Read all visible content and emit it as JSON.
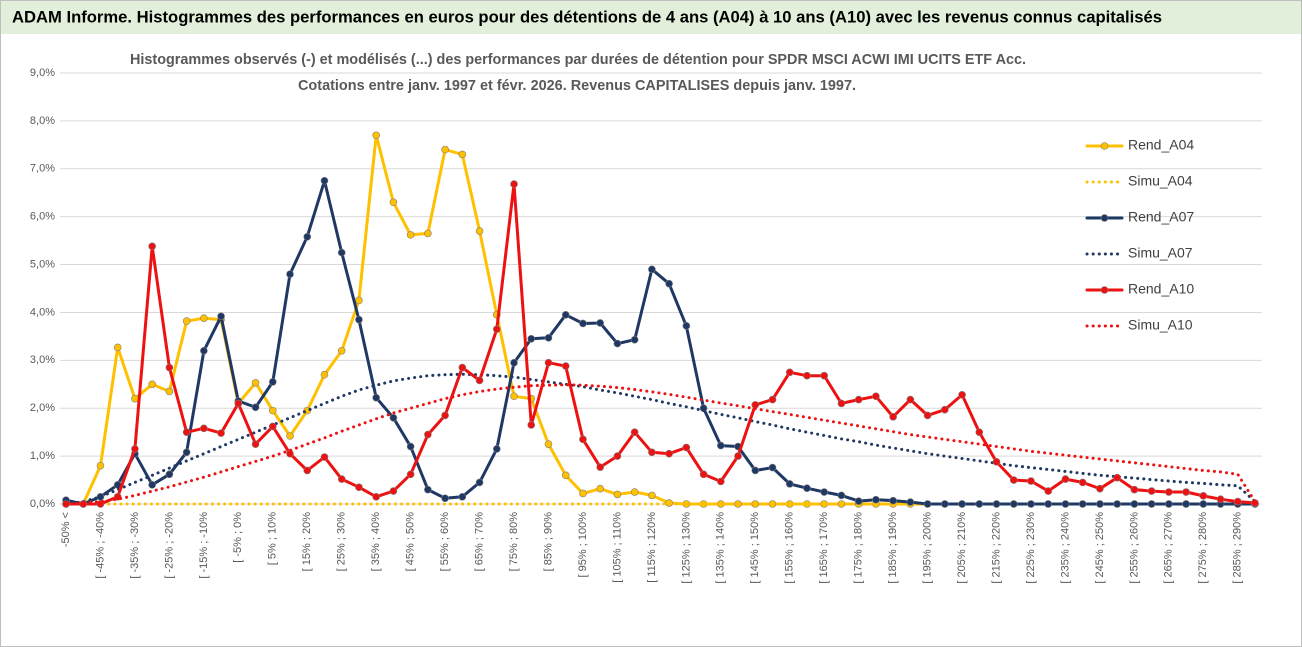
{
  "header": {
    "title": "ADAM Informe. Histogrammes des performances en euros pour des détentions de 4 ans (A04) à 10 ans (A10) avec les revenus connus capitalisés"
  },
  "chart_data": {
    "type": "line",
    "title": "Histogrammes observés (-) et modélisés (...) des performances par durées de détention pour SPDR MSCI ACWI IMI UCITS ETF Acc.",
    "subtitle": "Cotations entre janv. 1997 et févr. 2026. Revenus CAPITALISES depuis janv. 1997.",
    "categories": [
      "-50% <",
      null,
      "[ -45% ; -40%",
      null,
      "[ -35% ; -30%",
      null,
      "[ -25% ; -20%",
      null,
      "[ -15% ; -10%",
      null,
      "[ -5% ; 0%",
      null,
      "[ 5% ; 10%",
      null,
      "[ 15% ; 20%",
      null,
      "[ 25% ; 30%",
      null,
      "[ 35% ; 40%",
      null,
      "[ 45% ; 50%",
      null,
      "[ 55% ; 60%",
      null,
      "[ 65% ; 70%",
      null,
      "[ 75% ; 80%",
      null,
      "[ 85% ; 90%",
      null,
      "[ 95% ; 100%",
      null,
      "[ 105% ; 110%",
      null,
      "[ 115% ; 120%",
      null,
      "[ 125% ; 130%",
      null,
      "[ 135% ; 140%",
      null,
      "[ 145% ; 150%",
      null,
      "[ 155% ; 160%",
      null,
      "[ 165% ; 170%",
      null,
      "[ 175% ; 180%",
      null,
      "[ 185% ; 190%",
      null,
      "[ 195% ; 200%",
      null,
      "[ 205% ; 210%",
      null,
      "[ 215% ; 220%",
      null,
      "[ 225% ; 230%",
      null,
      "[ 235% ; 240%",
      null,
      "[ 245% ; 250%",
      null,
      "[ 255% ; 260%",
      null,
      "[ 265% ; 270%",
      null,
      "[ 275% ; 280%",
      null,
      "[ 285% ; 290%",
      null
    ],
    "series": [
      {
        "name": "Rend_A04",
        "color": "#ffc000",
        "style": "solid",
        "values": [
          0,
          0,
          0.8,
          3.27,
          2.2,
          2.5,
          2.35,
          3.82,
          3.88,
          3.85,
          2.1,
          2.53,
          1.95,
          1.42,
          1.95,
          2.7,
          3.2,
          4.25,
          7.7,
          6.3,
          5.62,
          5.65,
          7.4,
          7.3,
          5.7,
          3.95,
          2.25,
          2.2,
          1.25,
          0.6,
          0.22,
          0.32,
          0.2,
          0.25,
          0.18,
          0.02,
          0,
          0,
          0,
          0,
          0,
          0,
          0,
          0,
          0,
          0,
          0,
          0,
          0,
          0,
          0,
          0,
          0,
          0,
          0,
          0,
          0,
          0,
          0,
          0,
          0,
          0,
          0,
          0,
          0,
          0,
          0,
          0,
          0,
          0
        ]
      },
      {
        "name": "Simu_A04",
        "color": "#ffc000",
        "style": "dotted",
        "values": [
          0,
          0,
          0,
          0,
          0,
          0,
          0,
          0,
          0,
          0,
          0,
          0,
          0,
          0,
          0,
          0,
          0,
          0,
          0,
          0,
          0,
          0,
          0,
          0,
          0,
          0,
          0,
          0,
          0,
          0,
          0,
          0,
          0,
          0,
          0,
          0,
          0,
          0,
          0,
          0,
          0,
          0,
          0,
          0,
          0,
          0,
          0,
          0,
          0,
          0,
          0,
          0,
          0,
          0,
          0,
          0,
          0,
          0,
          0,
          0,
          0,
          0,
          0,
          0,
          0,
          0,
          0,
          0,
          0,
          0
        ]
      },
      {
        "name": "Rend_A07",
        "color": "#1f3864",
        "style": "solid",
        "values": [
          0.08,
          0,
          0.15,
          0.4,
          1.05,
          0.4,
          0.62,
          1.08,
          3.2,
          3.92,
          2.15,
          2.02,
          2.55,
          4.8,
          5.58,
          6.75,
          5.25,
          3.85,
          2.22,
          1.8,
          1.2,
          0.3,
          0.12,
          0.15,
          0.45,
          1.15,
          2.95,
          3.45,
          3.47,
          3.95,
          3.77,
          3.78,
          3.35,
          3.43,
          4.9,
          4.6,
          3.72,
          2.0,
          1.22,
          1.2,
          0.7,
          0.76,
          0.42,
          0.33,
          0.25,
          0.18,
          0.06,
          0.09,
          0.07,
          0.04,
          0,
          0,
          0,
          0,
          0,
          0,
          0,
          0,
          0,
          0,
          0,
          0,
          0,
          0,
          0,
          0,
          0,
          0,
          0,
          0
        ]
      },
      {
        "name": "Simu_A07",
        "color": "#1f3864",
        "style": "dotted",
        "values": [
          0,
          0.05,
          0.15,
          0.3,
          0.45,
          0.6,
          0.75,
          0.9,
          1.05,
          1.2,
          1.35,
          1.5,
          1.65,
          1.8,
          1.95,
          2.1,
          2.25,
          2.38,
          2.48,
          2.57,
          2.63,
          2.68,
          2.7,
          2.71,
          2.7,
          2.68,
          2.65,
          2.6,
          2.55,
          2.5,
          2.45,
          2.38,
          2.32,
          2.25,
          2.18,
          2.1,
          2.03,
          1.95,
          1.87,
          1.8,
          1.72,
          1.65,
          1.57,
          1.5,
          1.43,
          1.36,
          1.3,
          1.23,
          1.17,
          1.11,
          1.05,
          1.0,
          0.95,
          0.9,
          0.85,
          0.8,
          0.76,
          0.72,
          0.68,
          0.64,
          0.6,
          0.57,
          0.54,
          0.51,
          0.48,
          0.45,
          0.43,
          0.4,
          0.38,
          0.05
        ]
      },
      {
        "name": "Rend_A10",
        "color": "#ee1111",
        "style": "solid",
        "values": [
          0,
          0,
          0,
          0.15,
          1.15,
          5.38,
          2.85,
          1.5,
          1.58,
          1.48,
          2.1,
          1.25,
          1.62,
          1.05,
          0.7,
          0.98,
          0.52,
          0.35,
          0.15,
          0.27,
          0.62,
          1.45,
          1.85,
          2.85,
          2.58,
          3.65,
          6.68,
          1.65,
          2.95,
          2.88,
          1.35,
          0.77,
          1.0,
          1.5,
          1.08,
          1.05,
          1.18,
          0.62,
          0.47,
          1.0,
          2.07,
          2.18,
          2.75,
          2.68,
          2.68,
          2.1,
          2.18,
          2.25,
          1.82,
          2.18,
          1.85,
          1.97,
          2.28,
          1.5,
          0.88,
          0.5,
          0.48,
          0.27,
          0.52,
          0.45,
          0.32,
          0.55,
          0.3,
          0.27,
          0.25,
          0.25,
          0.17,
          0.1,
          0.05,
          0.02
        ]
      },
      {
        "name": "Simu_A10",
        "color": "#ee1111",
        "style": "dotted",
        "values": [
          0,
          0.02,
          0.05,
          0.1,
          0.18,
          0.27,
          0.36,
          0.46,
          0.56,
          0.67,
          0.78,
          0.89,
          1.0,
          1.12,
          1.25,
          1.38,
          1.52,
          1.65,
          1.78,
          1.9,
          2.0,
          2.1,
          2.2,
          2.28,
          2.35,
          2.4,
          2.44,
          2.47,
          2.48,
          2.49,
          2.48,
          2.46,
          2.43,
          2.39,
          2.34,
          2.29,
          2.23,
          2.17,
          2.11,
          2.05,
          1.99,
          1.93,
          1.87,
          1.81,
          1.75,
          1.69,
          1.63,
          1.57,
          1.51,
          1.45,
          1.4,
          1.35,
          1.3,
          1.25,
          1.2,
          1.15,
          1.1,
          1.06,
          1.02,
          0.98,
          0.94,
          0.9,
          0.86,
          0.82,
          0.78,
          0.74,
          0.7,
          0.67,
          0.62,
          0.05
        ]
      }
    ],
    "ylim": [
      0,
      9
    ],
    "yticks": [
      {
        "value": 0,
        "label": "0,0%"
      },
      {
        "value": 1,
        "label": "1,0%"
      },
      {
        "value": 2,
        "label": "2,0%"
      },
      {
        "value": 3,
        "label": "3,0%"
      },
      {
        "value": 4,
        "label": "4,0%"
      },
      {
        "value": 5,
        "label": "5,0%"
      },
      {
        "value": 6,
        "label": "6,0%"
      },
      {
        "value": 7,
        "label": "7,0%"
      },
      {
        "value": 8,
        "label": "8,0%"
      },
      {
        "value": 9,
        "label": "9,0%"
      }
    ],
    "grid": true,
    "legend": "right"
  }
}
